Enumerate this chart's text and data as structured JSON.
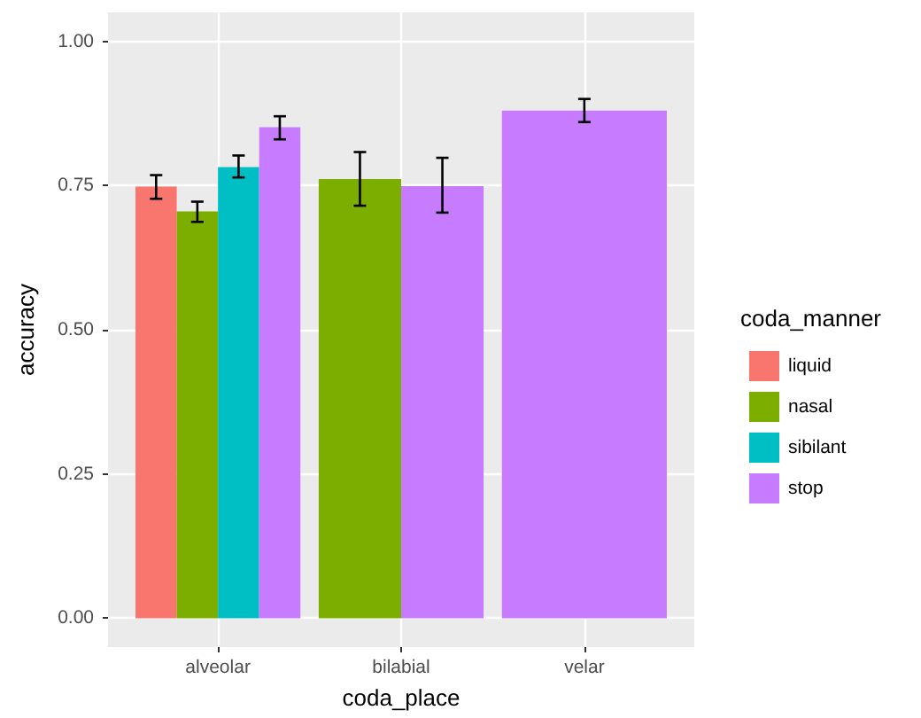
{
  "chart_data": {
    "type": "bar",
    "xlabel": "coda_place",
    "ylabel": "accuracy",
    "legend_title": "coda_manner",
    "categories": [
      "alveolar",
      "bilabial",
      "velar"
    ],
    "series": [
      {
        "name": "liquid",
        "color": "#f8766d",
        "values": [
          0.748,
          null,
          null
        ],
        "errors": [
          [
            0.727,
            0.768
          ],
          null,
          null
        ]
      },
      {
        "name": "nasal",
        "color": "#7cae00",
        "values": [
          0.705,
          0.761,
          null
        ],
        "errors": [
          [
            0.687,
            0.722
          ],
          [
            0.715,
            0.808
          ],
          null
        ]
      },
      {
        "name": "sibilant",
        "color": "#00bfc4",
        "values": [
          0.782,
          null,
          null
        ],
        "errors": [
          [
            0.764,
            0.802
          ],
          null,
          null
        ]
      },
      {
        "name": "stop",
        "color": "#c77cff",
        "values": [
          0.851,
          0.749,
          0.88
        ],
        "errors": [
          [
            0.83,
            0.87
          ],
          [
            0.703,
            0.798
          ],
          [
            0.86,
            0.9
          ]
        ]
      }
    ],
    "ylim": [
      -0.05,
      1.05
    ],
    "yticks": [
      {
        "value": 0,
        "label": "0.00"
      },
      {
        "value": 0.25,
        "label": "0.25"
      },
      {
        "value": 0.5,
        "label": "0.50"
      },
      {
        "value": 0.75,
        "label": "0.75"
      },
      {
        "value": 1,
        "label": "1.00"
      }
    ],
    "grid": true,
    "legend": "right"
  }
}
